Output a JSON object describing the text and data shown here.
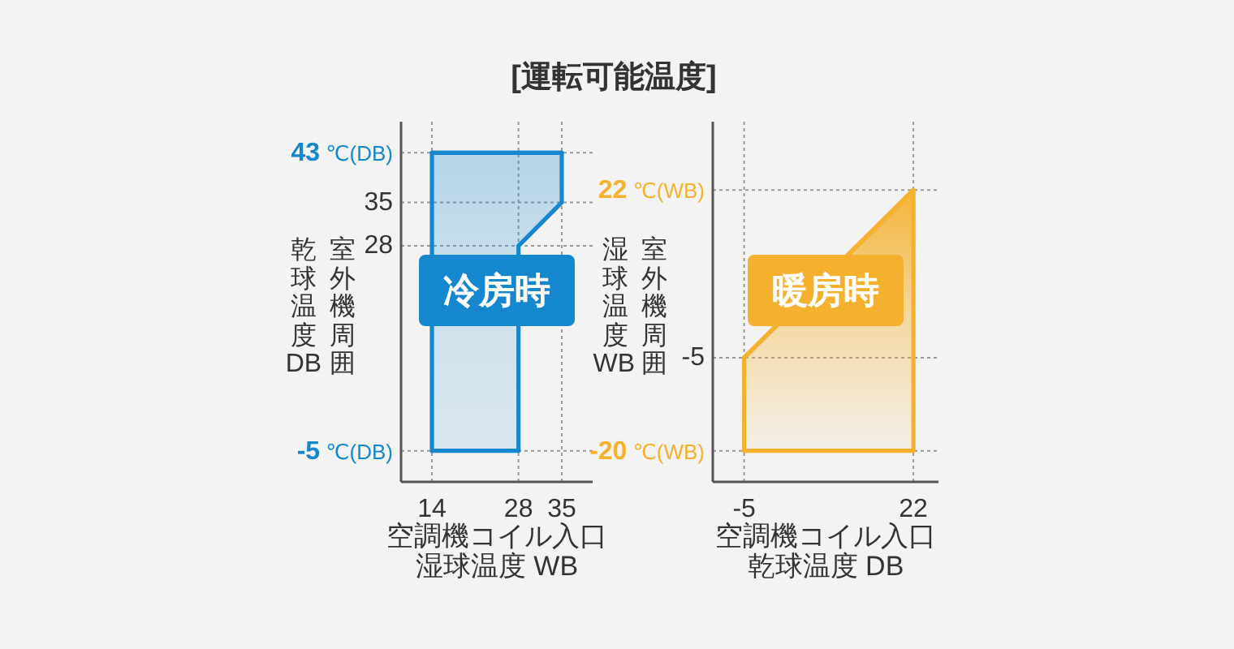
{
  "chart_data": [
    {
      "type": "line",
      "title": "[運転可能温度]",
      "xlabel": "空調機コイル入口湿球温度 WB",
      "ylabel": "室外機周囲乾球温度DB",
      "xlim": [
        9,
        40
      ],
      "ylim": [
        -10,
        48
      ],
      "xticks": [
        14,
        28,
        35
      ],
      "yticks": [
        {
          "value": 43,
          "label": "43\n℃(DB)"
        },
        35,
        28,
        {
          "value": -5,
          "label": "-5\n℃(DB)"
        }
      ],
      "grid": true,
      "series": [
        {
          "name": "冷房時",
          "color": "#1587cf",
          "x": [
            14,
            28,
            28,
            35
          ],
          "values": [
            43,
            43,
            43,
            43
          ],
          "lower": [
            -5,
            -5,
            28,
            35
          ],
          "upper": [
            43,
            43,
            43,
            43
          ]
        }
      ]
    },
    {
      "type": "line",
      "xlabel": "空調機コイル入口乾球温度 DB",
      "ylabel": "室外機周囲湿球温度WB",
      "xlim": [
        -10,
        26
      ],
      "ylim": [
        -25,
        33
      ],
      "xticks": [
        -5,
        22
      ],
      "yticks": [
        {
          "value": 22,
          "label": "22\n℃(WB)"
        },
        -5,
        {
          "value": -20,
          "label": "-20\n℃(WB)"
        }
      ],
      "grid": true,
      "series": [
        {
          "name": "暖房時",
          "color": "#f5b12e",
          "x": [
            -5,
            22
          ],
          "values": [
            -5,
            22
          ],
          "lower": [
            -20,
            -20
          ],
          "upper": [
            -5,
            22
          ]
        }
      ]
    }
  ]
}
